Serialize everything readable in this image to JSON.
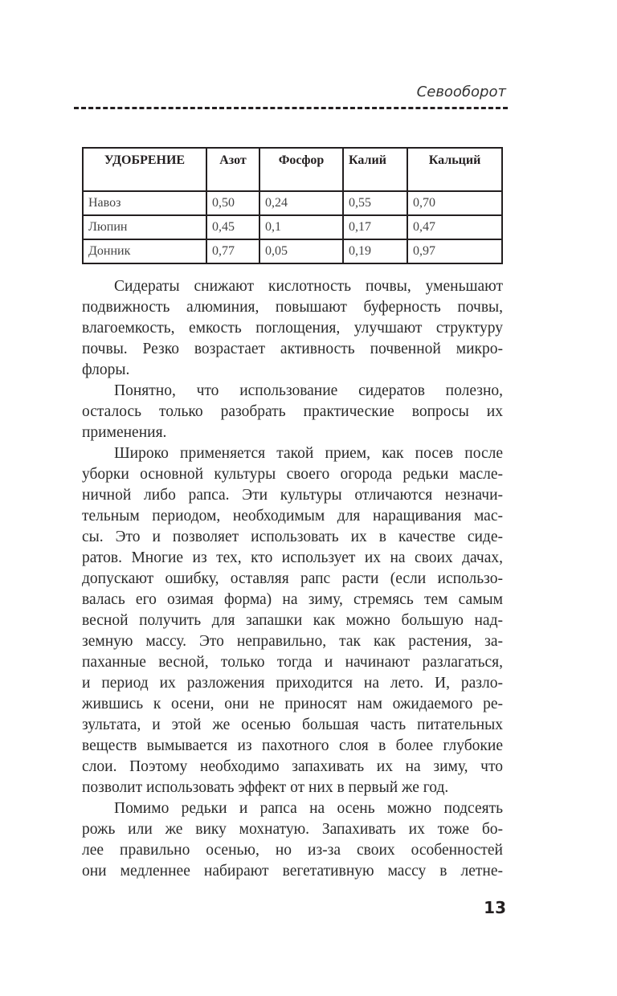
{
  "running_head": "Севооборот",
  "table": {
    "headers": [
      "УДОБРЕНИЕ",
      "Азот",
      "Фосфор",
      "Калий",
      "Кальций"
    ],
    "rows": [
      [
        "Навоз",
        "0,50",
        "0,24",
        "0,55",
        "0,70"
      ],
      [
        "Люпин",
        "0,45",
        "0,1",
        "0,17",
        "0,47"
      ],
      [
        "Донник",
        "0,77",
        "0,05",
        "0,19",
        "0,97"
      ]
    ]
  },
  "paragraphs": [
    [
      "Сидераты снижают кислотность почвы, уменьшают",
      "подвижность алюминия, повышают буферность почвы,",
      "влагоемкость, емкость поглощения, улучшают структуру",
      "почвы. Резко возрастает активность почвенной микро-",
      "флоры."
    ],
    [
      "Понятно, что использование сидератов полезно,",
      "осталось только разобрать практические вопросы их",
      "применения."
    ],
    [
      " Широко применяется такой прием, как посев после",
      "уборки основной культуры своего огорода редьки масле-",
      "ничной либо рапса. Эти культуры отличаются незначи-",
      "тельным периодом, необходимым для наращивания мас-",
      "сы. Это и позволяет использовать их в качестве сиде-",
      "ратов. Многие из тех, кто использует их на своих дачах,",
      "допускают ошибку, оставляя рапс расти (если использо-",
      "валась его озимая форма) на зиму, стремясь тем самым",
      "весной получить для запашки как можно большую над-",
      "земную массу. Это неправильно, так как растения, за-",
      "паханные весной, только тогда и начинают разлагаться,",
      "и период их разложения приходится на лето. И, разло-",
      "жившись к осени, они не приносят нам ожидаемого ре-",
      "зультата, и этой же осенью большая часть питательных",
      "веществ вымывается из пахотного слоя в более глубокие",
      "слои. Поэтому необходимо запахивать их на зиму, что",
      "позволит использовать эффект от них в первый же год."
    ],
    [
      "Помимо редьки и рапса на осень можно подсеять",
      "рожь или же вику мохнатую. Запахивать их тоже бо-",
      "лее правильно осенью, но из-за своих особенностей",
      "они медленнее набирают вегетативную массу в летне-"
    ]
  ],
  "last_paragraph_continues": true,
  "page_number": "13"
}
